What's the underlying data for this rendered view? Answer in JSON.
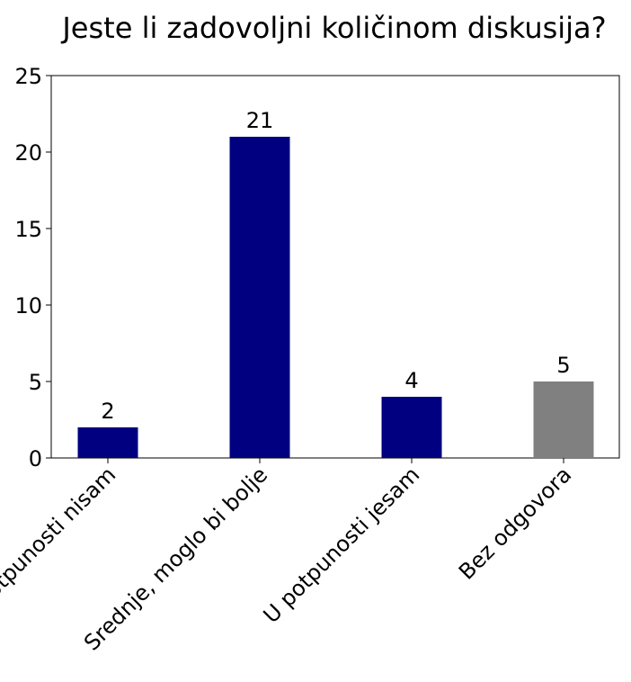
{
  "chart_data": {
    "type": "bar",
    "title": "Jeste li zadovoljni količinom diskusija?",
    "categories": [
      "U potpunosti nisam",
      "Srednje, moglo bi bolje",
      "U potpunosti jesam",
      "Bez odgovora"
    ],
    "values": [
      2,
      21,
      4,
      5
    ],
    "colors": [
      "#000080",
      "#000080",
      "#000080",
      "#808080"
    ],
    "ylim": [
      0,
      25
    ],
    "yticks": [
      0,
      5,
      10,
      15,
      20,
      25
    ],
    "grid": false
  }
}
